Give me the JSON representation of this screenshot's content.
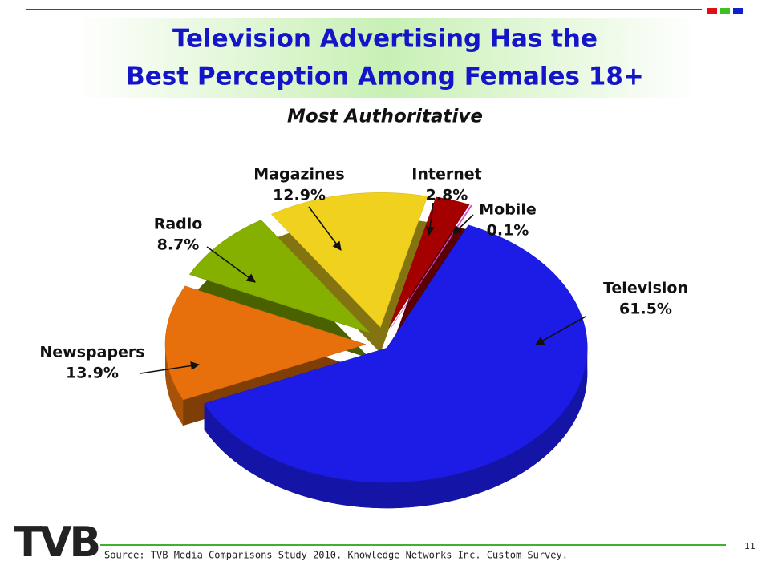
{
  "chart_data": {
    "type": "pie",
    "title": [
      "Television Advertising Has the",
      "Best Perception Among Females 18+"
    ],
    "subtitle": "Most Authoritative",
    "categories": [
      "Television",
      "Newspapers",
      "Radio",
      "Magazines",
      "Internet",
      "Mobile"
    ],
    "values": [
      61.5,
      13.9,
      8.7,
      12.9,
      2.8,
      0.1
    ],
    "value_labels": [
      "61.5%",
      "13.9%",
      "8.7%",
      "12.9%",
      "2.8%",
      "0.1%"
    ],
    "colors": [
      "#1c1ce6",
      "#e8700c",
      "#86b000",
      "#f0d21e",
      "#a40000",
      "#e64ee6"
    ]
  },
  "footer": {
    "source": "Source: TVB Media Comparisons Study 2010.  Knowledge Networks Inc. Custom Survey.",
    "page": "11",
    "logo": "TVB"
  }
}
